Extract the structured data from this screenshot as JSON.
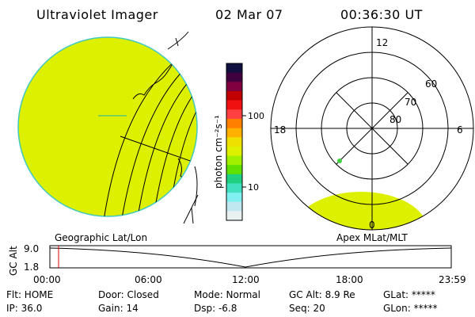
{
  "header": {
    "instrument": "Ultraviolet Imager",
    "date": "02 Mar 07",
    "time": "00:36:30 UT"
  },
  "left_panel": {
    "label": "Geographic Lat/Lon",
    "fill_color": "#ddf000"
  },
  "right_panel": {
    "label": "Apex MLat/MLT",
    "mlt_labels": [
      "12",
      "18",
      "6",
      "0"
    ],
    "mlat_labels": [
      "60",
      "70",
      "80"
    ],
    "fill_color": "#ddf000"
  },
  "colorbar": {
    "unit_text": "photon cm⁻²s⁻¹",
    "ticks": [
      "100",
      "10"
    ],
    "colors": [
      "#101040",
      "#400040",
      "#800040",
      "#c00000",
      "#f01010",
      "#ff4040",
      "#ff8000",
      "#ffb000",
      "#f0e000",
      "#ddf000",
      "#a0f000",
      "#60e000",
      "#20d080",
      "#40e0c0",
      "#80f0f0",
      "#c0e8f0",
      "#e8f0f0"
    ]
  },
  "gc_alt_strip": {
    "axis_label": "GC Alt",
    "ymax": "9.0",
    "ymin": "1.8",
    "time_ticks": [
      "00:00",
      "06:00",
      "12:00",
      "18:00",
      "23:59"
    ]
  },
  "status": {
    "filter": "Flt: HOME",
    "ip": "IP: 36.0",
    "door": "Door: Closed",
    "gain": "Gain: 14",
    "mode": "Mode: Normal",
    "dsp": "Dsp:  -6.8",
    "gc_alt": "GC Alt: 8.9 Re",
    "seq": "Seq: 20",
    "glat": "GLat: *****",
    "glon": "GLon: *****"
  }
}
